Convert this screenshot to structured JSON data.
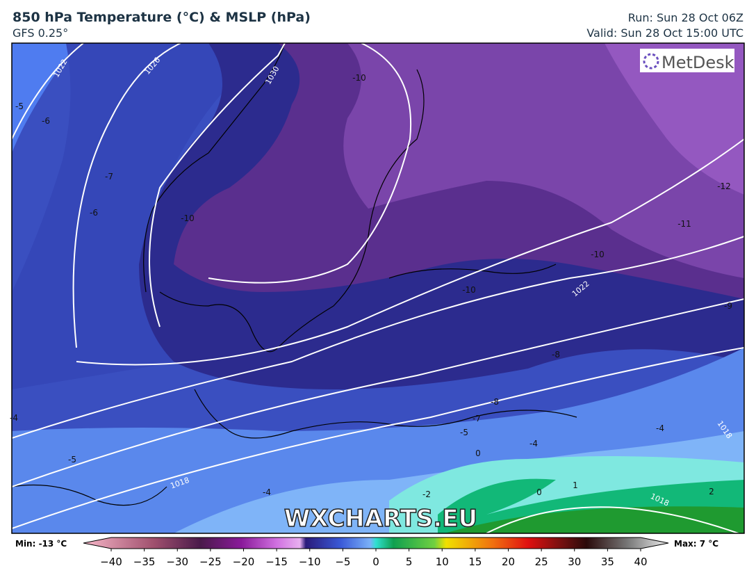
{
  "header": {
    "title": "850 hPa Temperature (°C) & MSLP (hPa)",
    "model": "GFS 0.25°",
    "run": "Run: Sun 28 Oct 06Z",
    "valid": "Valid: Sun 28 Oct 15:00 UTC"
  },
  "logo": "MetDesk",
  "watermark": "WXCHARTS.EU",
  "colorbar": {
    "min_label": "Min: -13 °C",
    "max_label": "Max: 7 °C",
    "range": [
      -40,
      40
    ],
    "ticks": [
      {
        "value": -40,
        "label": "−40"
      },
      {
        "value": -35,
        "label": "−35"
      },
      {
        "value": -30,
        "label": "−30"
      },
      {
        "value": -25,
        "label": "−25"
      },
      {
        "value": -20,
        "label": "−20"
      },
      {
        "value": -15,
        "label": "−15"
      },
      {
        "value": -10,
        "label": "−10"
      },
      {
        "value": -5,
        "label": "−5"
      },
      0,
      5,
      10,
      15,
      20,
      25,
      30,
      35,
      40
    ]
  },
  "contour_labels": {
    "pressure": [
      "1022",
      "1026",
      "1030",
      "1022",
      "1018",
      "1018",
      "1018"
    ],
    "temperature": [
      "-5",
      "-6",
      "-7",
      "-6",
      "-10",
      "-10",
      "-10",
      "-12",
      "-11",
      "-10",
      "-9",
      "-8",
      "-8",
      "-7",
      "-5",
      "-4",
      "-4",
      "-5",
      "-4",
      "-2",
      "0",
      "0",
      "1",
      "2",
      "-4"
    ]
  }
}
